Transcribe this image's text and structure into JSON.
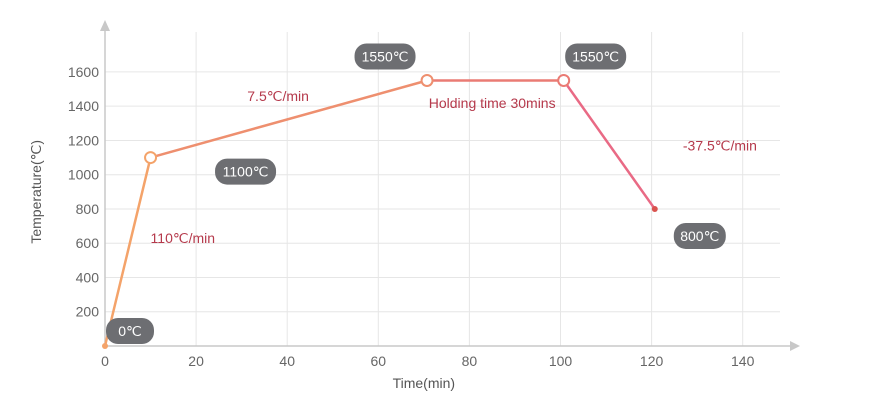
{
  "chart_data": {
    "type": "line",
    "xlabel": "Time(min)",
    "ylabel": "Temperature(℃)",
    "xlim": [
      0,
      150
    ],
    "ylim": [
      0,
      1800
    ],
    "x_ticks": [
      0,
      20,
      40,
      60,
      80,
      100,
      120,
      140
    ],
    "y_ticks": [
      200,
      400,
      600,
      800,
      1000,
      1200,
      1400,
      1600
    ],
    "grid": true,
    "x": [
      0,
      10,
      70.7,
      100.7,
      120.7
    ],
    "y": [
      0,
      1100,
      1550,
      1550,
      800
    ],
    "segment_colors": [
      "#f4a36a",
      "#ee8f6f",
      "#ea7b74",
      "#e96a85"
    ],
    "point_labels": [
      "0℃",
      "1100℃",
      "1550℃",
      "1550℃",
      "800℃"
    ],
    "rate_annotations": [
      {
        "text": "110℃/min",
        "x": 10,
        "y": 600
      },
      {
        "text": "7.5℃/min",
        "x": 38,
        "y": 1430
      },
      {
        "text": "Holding time 30mins",
        "x": 85,
        "y": 1390
      },
      {
        "text": "-37.5℃/min",
        "x": 135,
        "y": 1140
      }
    ],
    "colors": {
      "badge": "#6d6e72",
      "annotation": "#b5394b",
      "axis": "#c8c8c8",
      "grid": "#e6e6e6"
    }
  }
}
